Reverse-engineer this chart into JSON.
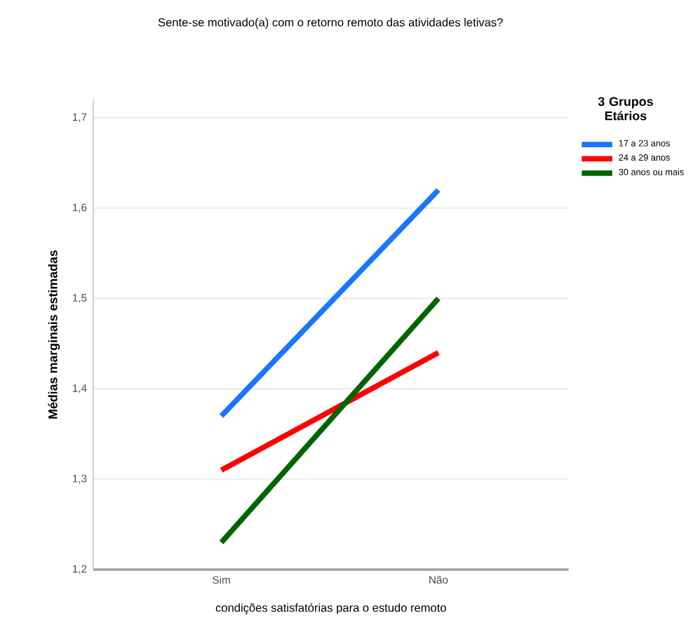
{
  "chart_data": {
    "type": "line",
    "title": "Sente-se motivado(a) com o retorno remoto das atividades letivas?",
    "xlabel": "condições  satisfatórias para o estudo remoto",
    "ylabel": "Médias marginais estimadas",
    "legend_title": "3 Grupos Etários",
    "categories": [
      "Sim",
      "Não"
    ],
    "series": [
      {
        "name": "17 a 23 anos",
        "color": "#1a75ff",
        "values": [
          1.37,
          1.62
        ]
      },
      {
        "name": "24 a 29 anos",
        "color": "#ff0000",
        "values": [
          1.31,
          1.44
        ]
      },
      {
        "name": "30 anos ou mais",
        "color": "#006400",
        "values": [
          1.23,
          1.5
        ]
      }
    ],
    "ylim": [
      1.2,
      1.72
    ],
    "yticks": [
      {
        "value": 1.2,
        "label": "1,2"
      },
      {
        "value": 1.3,
        "label": "1,3"
      },
      {
        "value": 1.4,
        "label": "1,4"
      },
      {
        "value": 1.5,
        "label": "1,5"
      },
      {
        "value": 1.6,
        "label": "1,6"
      },
      {
        "value": 1.7,
        "label": "1,7"
      }
    ],
    "grid": "y",
    "legend": "top right",
    "marker": "none",
    "line_style": "solid"
  }
}
